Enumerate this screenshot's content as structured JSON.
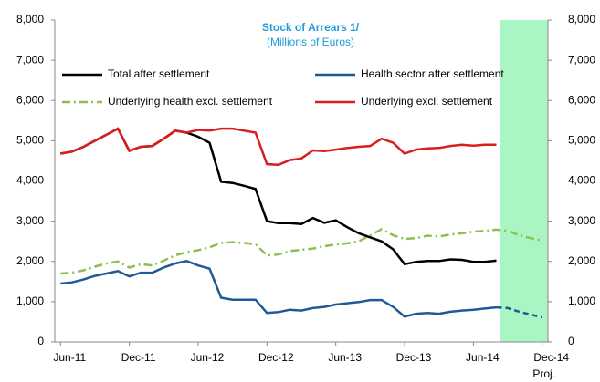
{
  "chart_data": {
    "type": "line",
    "title": "Stock of Arrears 1/",
    "subtitle": "(Millions of Euros)",
    "x_note": "Proj.",
    "categories": [
      "Jun-11",
      null,
      null,
      null,
      null,
      null,
      "Dec-11",
      null,
      null,
      null,
      null,
      null,
      "Jun-12",
      null,
      null,
      null,
      null,
      null,
      "Dec-12",
      null,
      null,
      null,
      null,
      null,
      "Jun-13",
      null,
      null,
      null,
      null,
      null,
      "Dec-13",
      null,
      null,
      null,
      null,
      null,
      "Jun-14",
      null,
      null,
      null,
      null,
      null,
      "Dec-14"
    ],
    "ylim": [
      0,
      8000
    ],
    "yticks": [
      0,
      {
        "value": 1000,
        "label": "1,000"
      },
      {
        "value": 2000,
        "label": "2,000"
      },
      {
        "value": 3000,
        "label": "3,000"
      },
      {
        "value": 4000,
        "label": "4,000"
      },
      {
        "value": 5000,
        "label": "5,000"
      },
      {
        "value": 6000,
        "label": "6,000"
      },
      {
        "value": 7000,
        "label": "7,000"
      },
      {
        "value": 8000,
        "label": "8,000"
      }
    ],
    "shade_color": "#a9f5c4",
    "series": [
      {
        "name": "Total after settlement",
        "color": "#000000",
        "style": "solid",
        "values": [
          4680,
          4730,
          4850,
          5000,
          5150,
          5300,
          4750,
          4850,
          4870,
          5050,
          5250,
          5200,
          5100,
          4950,
          3980,
          3950,
          3880,
          3800,
          3000,
          2950,
          2950,
          2930,
          3080,
          2960,
          3020,
          2850,
          2700,
          2600,
          2500,
          2300,
          1930,
          1990,
          2010,
          2010,
          2050,
          2040,
          1990,
          1990,
          2020,
          null,
          null,
          null,
          null
        ]
      },
      {
        "name": "Health sector after settlement",
        "color": "#1f5a96",
        "style": "solid",
        "values": [
          1450,
          1480,
          1550,
          1640,
          1700,
          1760,
          1630,
          1720,
          1720,
          1850,
          1950,
          2010,
          1900,
          1820,
          1100,
          1050,
          1050,
          1050,
          720,
          740,
          800,
          780,
          840,
          870,
          930,
          960,
          990,
          1040,
          1040,
          870,
          630,
          700,
          720,
          700,
          750,
          780,
          800,
          830,
          860,
          840,
          750,
          680,
          610
        ]
      },
      {
        "name": "Underlying health excl. settlement",
        "color": "#8dc051",
        "style": "dashdot",
        "values": [
          1700,
          1720,
          1780,
          1870,
          1950,
          2000,
          1850,
          1930,
          1900,
          2020,
          2150,
          2230,
          2280,
          2350,
          2460,
          2480,
          2460,
          2430,
          2150,
          2170,
          2260,
          2290,
          2320,
          2380,
          2420,
          2450,
          2500,
          2650,
          2800,
          2650,
          2560,
          2580,
          2640,
          2620,
          2670,
          2700,
          2740,
          2760,
          2790,
          2760,
          2650,
          2580,
          2520
        ]
      },
      {
        "name": "Underlying excl. settlement",
        "color": "#d91e1e",
        "style": "solid",
        "values": [
          4680,
          4730,
          4850,
          5000,
          5150,
          5300,
          4750,
          4850,
          4870,
          5050,
          5250,
          5200,
          5270,
          5250,
          5300,
          5300,
          5250,
          5200,
          4420,
          4400,
          4520,
          4560,
          4760,
          4740,
          4780,
          4820,
          4850,
          4870,
          5050,
          4950,
          4680,
          4780,
          4810,
          4820,
          4870,
          4900,
          4880,
          4900,
          4900,
          null,
          null,
          null,
          null
        ]
      }
    ]
  }
}
